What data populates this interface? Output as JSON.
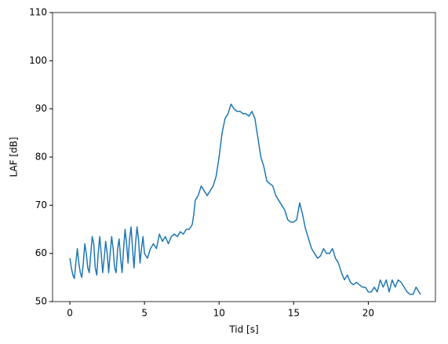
{
  "chart_data": {
    "type": "line",
    "x_label": "Tid [s]",
    "y_label": "LAF [dB]",
    "x": [
      0,
      0.1,
      0.2,
      0.3,
      0.4,
      0.5,
      0.6,
      0.7,
      0.8,
      0.9,
      1.0,
      1.1,
      1.2,
      1.3,
      1.4,
      1.5,
      1.6,
      1.7,
      1.8,
      1.9,
      2.0,
      2.1,
      2.2,
      2.3,
      2.4,
      2.5,
      2.6,
      2.7,
      2.8,
      2.9,
      3.0,
      3.1,
      3.2,
      3.3,
      3.4,
      3.5,
      3.6,
      3.7,
      3.8,
      3.9,
      4.0,
      4.1,
      4.2,
      4.3,
      4.4,
      4.5,
      4.6,
      4.7,
      4.8,
      4.9,
      5.0,
      5.2,
      5.4,
      5.6,
      5.8,
      6.0,
      6.2,
      6.4,
      6.6,
      6.8,
      7.0,
      7.2,
      7.4,
      7.6,
      7.8,
      8.0,
      8.2,
      8.3,
      8.4,
      8.6,
      8.8,
      9.0,
      9.2,
      9.4,
      9.6,
      9.8,
      10.0,
      10.2,
      10.4,
      10.6,
      10.8,
      11.0,
      11.2,
      11.4,
      11.6,
      11.8,
      12.0,
      12.2,
      12.4,
      12.6,
      12.8,
      13.0,
      13.2,
      13.4,
      13.6,
      13.8,
      14.0,
      14.2,
      14.4,
      14.6,
      14.8,
      15.0,
      15.2,
      15.4,
      15.6,
      15.8,
      16.0,
      16.2,
      16.4,
      16.6,
      16.8,
      17.0,
      17.2,
      17.4,
      17.6,
      17.8,
      18.0,
      18.2,
      18.4,
      18.6,
      18.8,
      19.0,
      19.2,
      19.4,
      19.6,
      19.8,
      20.0,
      20.2,
      20.4,
      20.6,
      20.8,
      21.0,
      21.2,
      21.4,
      21.6,
      21.8,
      22.0,
      22.2,
      22.4,
      22.6,
      22.8,
      23.0,
      23.2,
      23.4,
      23.5
    ],
    "series": [
      {
        "color": "#1f77b4",
        "values": [
          59,
          57,
          55.5,
          54.8,
          58,
          61,
          58,
          56,
          55,
          58,
          62,
          60,
          57,
          56,
          60,
          63.5,
          62,
          57,
          55.5,
          60,
          63.5,
          60,
          56,
          59,
          62.5,
          60,
          56,
          60,
          63.5,
          61,
          57,
          56,
          61,
          63,
          59,
          56,
          61,
          65,
          62,
          58,
          63,
          65.5,
          61,
          57,
          62,
          65.5,
          63,
          58,
          61,
          63.5,
          60,
          59,
          61,
          62,
          61,
          64,
          62.5,
          63.5,
          62,
          63.5,
          64,
          63.5,
          64.5,
          64,
          65,
          65,
          66,
          68,
          71,
          72,
          74,
          73,
          72,
          73,
          74,
          76,
          80,
          85,
          88,
          89,
          91,
          90,
          89.5,
          89.5,
          89,
          89,
          88.5,
          89.5,
          88,
          84,
          80,
          78,
          75,
          74.5,
          74,
          72,
          71,
          70,
          69,
          67,
          66.5,
          66.5,
          67,
          70.5,
          68,
          65,
          63,
          61,
          60,
          59,
          59.5,
          61,
          60,
          60,
          61,
          59,
          58,
          56,
          54.5,
          55.5,
          54,
          53.5,
          54,
          53.5,
          53,
          53,
          52,
          52,
          53,
          52,
          54.5,
          53,
          54.5,
          52,
          54.5,
          53,
          54.5,
          54,
          53,
          52,
          51.5,
          51.5,
          53,
          52,
          51.5
        ]
      }
    ],
    "xlim": [
      -1.16,
      24.5
    ],
    "ylim": [
      50,
      110
    ],
    "xticks": [
      0,
      5,
      10,
      15,
      20
    ],
    "yticks": [
      50,
      60,
      70,
      80,
      90,
      100,
      110
    ]
  }
}
